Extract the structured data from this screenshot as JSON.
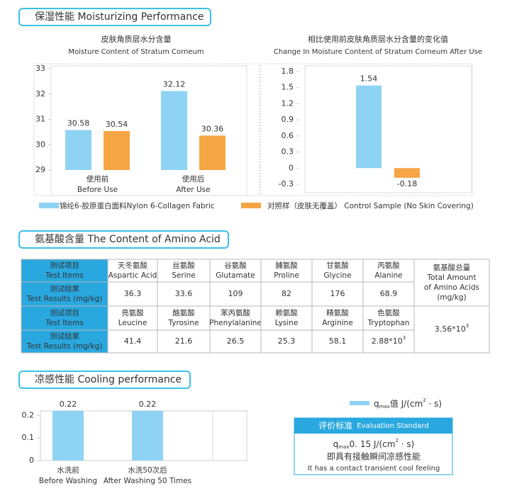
{
  "sections": [
    "保湿性能  Moisturizing Performance",
    "氨基酸含量  The Content of Amino Acid",
    "凉感性能  Cooling performance"
  ],
  "chart_data": [
    {
      "type": "bar",
      "title": "皮肤角质层水分含量",
      "subtitle": "Moisture Content of Stratum Corneum",
      "categories": [
        [
          "使用前",
          "Before Use"
        ],
        [
          "使用后",
          "After Use"
        ]
      ],
      "series": [
        {
          "name": "锦纶6-胶原蛋白面料Nylon 6-Collagen Fabric",
          "color": "#8fd3f4",
          "values": [
            30.58,
            32.12
          ]
        },
        {
          "name": "对照样（皮肤无覆盖）  Control Sample (No Skin Covering)",
          "color": "#f6a545",
          "values": [
            30.54,
            30.36
          ]
        }
      ],
      "ylim": [
        29,
        33
      ],
      "yticks": [
        29,
        30,
        31,
        32,
        33
      ]
    },
    {
      "type": "bar",
      "title": "相比使用前皮肤角质层水分含量的变化值",
      "subtitle": "Change In Moisture Content of Stratum Corneum After Use",
      "categories": [
        null
      ],
      "series": [
        {
          "color": "#8fd3f4",
          "values": [
            1.54
          ]
        },
        {
          "color": "#f6a545",
          "values": [
            -0.18
          ]
        }
      ],
      "ylim": [
        -0.3,
        1.8
      ],
      "yticks": [
        -0.3,
        0,
        0.3,
        0.6,
        0.9,
        1.2,
        1.5,
        1.8
      ]
    },
    {
      "type": "bar",
      "categories": [
        [
          "水洗前",
          "Before Washing"
        ],
        [
          "水洗50次后",
          "After Washing 50 Times"
        ]
      ],
      "series": [
        {
          "name_parts": [
            "q",
            "max",
            "值 J/(cm",
            "2",
            " · s)"
          ],
          "color": "#8fd3f4",
          "values": [
            0.22,
            0.22
          ]
        }
      ],
      "ylim": [
        0,
        0.22
      ],
      "yticks": [
        0,
        0.1,
        0.2
      ]
    }
  ],
  "table": {
    "item_header": [
      "测试项目",
      "Test Items"
    ],
    "result_header": [
      "测试结果",
      "Test Results (mg/kg)"
    ],
    "groups": [
      {
        "items": [
          [
            "天冬氨酸",
            "Aspartic Acid"
          ],
          [
            "丝氨酸",
            "Serine"
          ],
          [
            "谷氨酸",
            "Glutamate"
          ],
          [
            "脯氨酸",
            "Proline"
          ],
          [
            "甘氨酸",
            "Glycine"
          ],
          [
            "丙氨酸",
            "Alanine"
          ]
        ],
        "results": [
          "36.3",
          "33.6",
          "109",
          "82",
          "176",
          "68.9"
        ]
      },
      {
        "items": [
          [
            "亮氨酸",
            "Leucine"
          ],
          [
            "酪氨酸",
            "Tyrosine"
          ],
          [
            "苯丙氨酸",
            "Phenylalanine"
          ],
          [
            "赖氨酸",
            "Lysine"
          ],
          [
            "精氨酸",
            "Arginine"
          ],
          [
            "色氨酸",
            "Tryptophan"
          ]
        ],
        "results": [
          "41.4",
          "21.6",
          "26.5",
          "25.3",
          "58.1",
          [
            "2.88*10",
            "3"
          ]
        ]
      }
    ],
    "total_header": [
      "氨基酸总量",
      "Total Amount",
      "of Amino Acids",
      "(mg/kg)"
    ],
    "total": [
      "3.56*10",
      "3"
    ]
  },
  "evaluation": {
    "title": [
      "评价标准",
      "Evaluation Standard"
    ],
    "criterion": [
      "q",
      "max",
      "0. 15 J/(cm",
      "2",
      " · s)"
    ],
    "conclusion": "即具有接触瞬间凉感性能",
    "conclusion_en": "It has a contact transient cool feeling"
  }
}
